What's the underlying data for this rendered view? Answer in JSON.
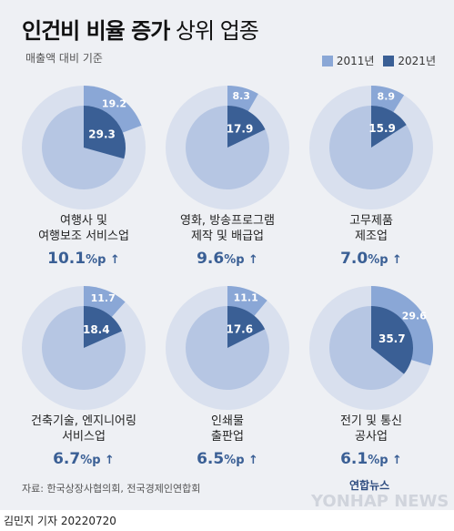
{
  "title": {
    "main": "인건비 비율 증가",
    "sub": " 상위 업종"
  },
  "subtitle": "매출액 대비 기준",
  "legend": [
    {
      "label": "2011년",
      "color": "#8aa7d6"
    },
    {
      "label": "2021년",
      "color": "#3a5f95"
    }
  ],
  "colors": {
    "ring": "#d9e0ee",
    "inner": "#b6c6e3",
    "y2011": "#8aa7d6",
    "y2021": "#3a5f95",
    "text": "#3a5f95"
  },
  "chart_data": {
    "type": "pie",
    "series_names": [
      "2011년",
      "2021년"
    ],
    "industries": [
      {
        "name": [
          "여행사 및",
          "여행보조 서비스업"
        ],
        "y2011": 19.2,
        "y2021": 29.3,
        "diff": "10.1",
        "diff_unit": "%p ↑"
      },
      {
        "name": [
          "영화, 방송프로그램",
          "제작 및 배급업"
        ],
        "y2011": 8.3,
        "y2021": 17.9,
        "diff": "9.6",
        "diff_unit": "%p ↑"
      },
      {
        "name": [
          "고무제품",
          "제조업"
        ],
        "y2011": 8.9,
        "y2021": 15.9,
        "diff": "7.0",
        "diff_unit": "%p ↑"
      },
      {
        "name": [
          "건축기술, 엔지니어링",
          "서비스업"
        ],
        "y2011": 11.7,
        "y2021": 18.4,
        "diff": "6.7",
        "diff_unit": "%p ↑"
      },
      {
        "name": [
          "인쇄물",
          "출판업"
        ],
        "y2011": 11.1,
        "y2021": 17.6,
        "diff": "6.5",
        "diff_unit": "%p ↑"
      },
      {
        "name": [
          "전기 및 통신",
          "공사업"
        ],
        "y2011": 29.6,
        "y2021": 35.7,
        "diff": "6.1",
        "diff_unit": "%p ↑"
      }
    ]
  },
  "source": "자료: 한국상장사협의회, 전국경제인연합회",
  "logo": "연합뉴스",
  "watermark": "YONHAP NEWS",
  "byline": "김민지 기자  20220720"
}
